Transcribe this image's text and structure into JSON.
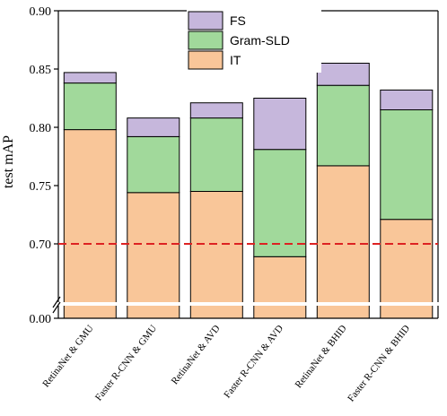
{
  "chart_data": {
    "type": "bar",
    "stacked": true,
    "title": "",
    "xlabel": "",
    "ylabel": "test mAP",
    "categories": [
      "RetinaNet & GMU",
      "Faster R-CNN & GMU",
      "RetinaNet & AVD",
      "Faster R-CNN & AVD",
      "RetinaNet & BHID",
      "Faster R-CNN & BHID"
    ],
    "series": [
      {
        "name": "IT",
        "color": "#f9c699",
        "cumulative_top": [
          0.798,
          0.744,
          0.745,
          0.689,
          0.767,
          0.721
        ]
      },
      {
        "name": "Gram-SLD",
        "color": "#a1d99b",
        "cumulative_top": [
          0.838,
          0.792,
          0.808,
          0.781,
          0.836,
          0.815
        ]
      },
      {
        "name": "FS",
        "color": "#c6b7dc",
        "cumulative_top": [
          0.847,
          0.808,
          0.821,
          0.825,
          0.855,
          0.832
        ]
      }
    ],
    "ylim": [
      0.0,
      0.9
    ],
    "axis_break": [
      0.0,
      0.65
    ],
    "yticks": [
      "0.00",
      "0.70",
      "0.75",
      "0.80",
      "0.85",
      "0.90"
    ],
    "reference_line": {
      "value": 0.7,
      "color": "#dd2222",
      "style": "dashed"
    },
    "legend": {
      "position": "top-center",
      "order": [
        "FS",
        "Gram-SLD",
        "IT"
      ]
    },
    "grid": false
  }
}
